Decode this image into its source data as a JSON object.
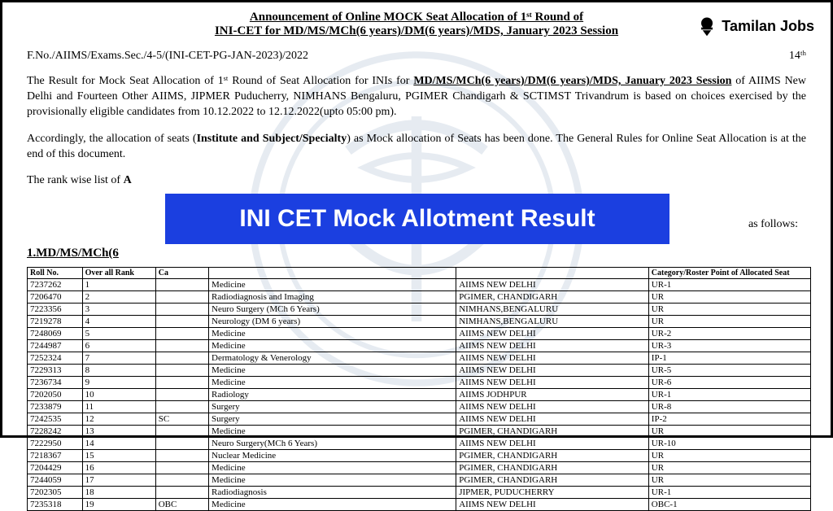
{
  "watermark": {
    "stroke": "#88a0c0"
  },
  "logo": {
    "text": "Tamilan Jobs"
  },
  "header": {
    "line1": "Announcement of Online MOCK Seat Allocation of 1ˢᵗ Round of",
    "line2": "INI-CET for MD/MS/MCh(6 years)/DM(6 years)/MDS, January 2023 Session"
  },
  "ref": {
    "left": "F.No./AIIMS/Exams.Sec./4-5/(INI-CET-PG-JAN-2023)/2022",
    "right": "14ᵗʰ"
  },
  "para1": {
    "pre": "The Result for Mock Seat Allocation of 1ˢᵗ Round of Seat Allocation for INIs for ",
    "u1": "MD/MS/MCh(6 years)/DM(6 years)/MDS, January 2023 Session",
    "post": " of AIIMS New Delhi and Fourteen Other AIIMS, JIPMER Puducherry, NIMHANS Bengaluru, PGIMER Chandigarh & SCTIMST Trivandrum is based on choices exercised by the provisionally eligible candidates from 10.12.2022 to 12.12.2022(upto 05:00 pm)."
  },
  "para2": {
    "pre": "Accordingly, the allocation of seats (",
    "bold": "Institute and Subject/Specialty",
    "post": ") as Mock allocation of Seats has been done. The General Rules for Online Seat Allocation is at the end of this document."
  },
  "para3": {
    "pre": "The rank wise list of ",
    "bold": "A"
  },
  "trailing": "as follows:",
  "banner": "INI CET Mock Allotment Result",
  "section": "1.MD/MS/MCh(6",
  "table": {
    "headers": {
      "roll": "Roll No.",
      "rank": "Over all Rank",
      "cat": "Ca",
      "spec": "",
      "inst": "",
      "alloc": "Category/Roster Point of Allocated Seat"
    },
    "rows": [
      {
        "roll": "7237262",
        "rank": "1",
        "cat": "",
        "spec": "Medicine",
        "inst": "AIIMS NEW DELHI",
        "alloc": "UR-1"
      },
      {
        "roll": "7206470",
        "rank": "2",
        "cat": "",
        "spec": "Radiodiagnosis and Imaging",
        "inst": "PGIMER, CHANDIGARH",
        "alloc": "UR"
      },
      {
        "roll": "7223356",
        "rank": "3",
        "cat": "",
        "spec": "Neuro Surgery (MCh 6 Years)",
        "inst": "NIMHANS,BENGALURU",
        "alloc": "UR"
      },
      {
        "roll": "7219278",
        "rank": "4",
        "cat": "",
        "spec": "Neurology (DM 6 years)",
        "inst": "NIMHANS,BENGALURU",
        "alloc": "UR"
      },
      {
        "roll": "7248069",
        "rank": "5",
        "cat": "",
        "spec": "Medicine",
        "inst": "AIIMS NEW DELHI",
        "alloc": "UR-2"
      },
      {
        "roll": "7244987",
        "rank": "6",
        "cat": "",
        "spec": "Medicine",
        "inst": "AIIMS NEW DELHI",
        "alloc": "UR-3"
      },
      {
        "roll": "7252324",
        "rank": "7",
        "cat": "",
        "spec": "Dermatology & Venerology",
        "inst": "AIIMS NEW DELHI",
        "alloc": "IP-1"
      },
      {
        "roll": "7229313",
        "rank": "8",
        "cat": "",
        "spec": "Medicine",
        "inst": "AIIMS NEW DELHI",
        "alloc": "UR-5"
      },
      {
        "roll": "7236734",
        "rank": "9",
        "cat": "",
        "spec": "Medicine",
        "inst": "AIIMS NEW DELHI",
        "alloc": "UR-6"
      },
      {
        "roll": "7202050",
        "rank": "10",
        "cat": "",
        "spec": "Radiology",
        "inst": "AIIMS JODHPUR",
        "alloc": "UR-1"
      },
      {
        "roll": "7233879",
        "rank": "11",
        "cat": "",
        "spec": "Surgery",
        "inst": "AIIMS NEW DELHI",
        "alloc": "UR-8"
      },
      {
        "roll": "7242535",
        "rank": "12",
        "cat": "SC",
        "spec": "Surgery",
        "inst": "AIIMS NEW DELHI",
        "alloc": "IP-2"
      },
      {
        "roll": "7228242",
        "rank": "13",
        "cat": "",
        "spec": "Medicine",
        "inst": "PGIMER, CHANDIGARH",
        "alloc": "UR"
      },
      {
        "roll": "7222950",
        "rank": "14",
        "cat": "",
        "spec": "Neuro Surgery(MCh 6 Years)",
        "inst": "AIIMS NEW DELHI",
        "alloc": "UR-10"
      },
      {
        "roll": "7218367",
        "rank": "15",
        "cat": "",
        "spec": "Nuclear Medicine",
        "inst": "PGIMER, CHANDIGARH",
        "alloc": "UR"
      },
      {
        "roll": "7204429",
        "rank": "16",
        "cat": "",
        "spec": "Medicine",
        "inst": "PGIMER, CHANDIGARH",
        "alloc": "UR"
      },
      {
        "roll": "7244059",
        "rank": "17",
        "cat": "",
        "spec": "Medicine",
        "inst": "PGIMER, CHANDIGARH",
        "alloc": "UR"
      },
      {
        "roll": "7202305",
        "rank": "18",
        "cat": "",
        "spec": "Radiodiagnosis",
        "inst": "JIPMER, PUDUCHERRY",
        "alloc": "UR-1"
      },
      {
        "roll": "7235318",
        "rank": "19",
        "cat": "OBC",
        "spec": "Medicine",
        "inst": "AIIMS NEW DELHI",
        "alloc": "OBC-1"
      }
    ]
  }
}
